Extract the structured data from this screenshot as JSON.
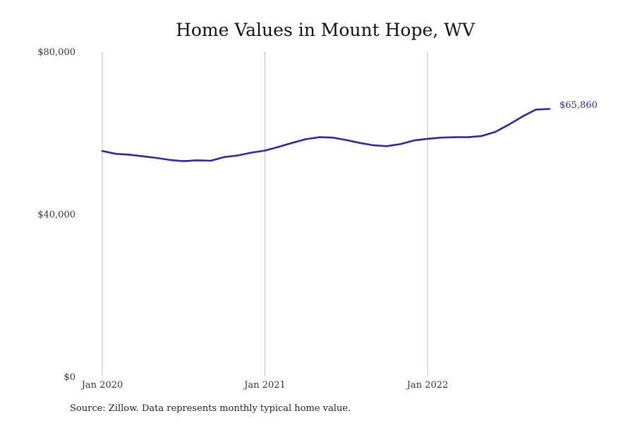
{
  "chart_data": {
    "type": "line",
    "title": "Home Values in Mount Hope, WV",
    "xlabel": "",
    "ylabel": "",
    "ylim": [
      0,
      80000
    ],
    "x_range": [
      "2020-01",
      "2022-11"
    ],
    "x_ticks": [
      {
        "date": "2020-01",
        "label": "Jan 2020"
      },
      {
        "date": "2021-01",
        "label": "Jan 2021"
      },
      {
        "date": "2022-01",
        "label": "Jan 2022"
      }
    ],
    "y_ticks": [
      {
        "value": 0,
        "label": "$0"
      },
      {
        "value": 40000,
        "label": "$40,000"
      },
      {
        "value": 80000,
        "label": "$80,000"
      }
    ],
    "grid": "vertical lines at year ticks",
    "legend": "none",
    "line_color": "#2e2a8f",
    "grid_color": "#bbbbbb",
    "series": [
      {
        "x": [
          "2020-01",
          "2020-02",
          "2020-03",
          "2020-04",
          "2020-05",
          "2020-06",
          "2020-07",
          "2020-08",
          "2020-09",
          "2020-10",
          "2020-11",
          "2020-12",
          "2021-01",
          "2021-02",
          "2021-03",
          "2021-04",
          "2021-05",
          "2021-06",
          "2021-07",
          "2021-08",
          "2021-09",
          "2021-10",
          "2021-11",
          "2021-12",
          "2022-01",
          "2022-02",
          "2022-03",
          "2022-04",
          "2022-05",
          "2022-06",
          "2022-07",
          "2022-08",
          "2022-09",
          "2022-10",
          "2022-11"
        ],
        "values": [
          55500,
          54800,
          54600,
          54200,
          53800,
          53300,
          53000,
          53200,
          53100,
          54000,
          54400,
          55100,
          55600,
          56500,
          57500,
          58400,
          58900,
          58800,
          58200,
          57500,
          56900,
          56700,
          57200,
          58100,
          58500,
          58800,
          58900,
          58900,
          59200,
          60200,
          62000,
          64000,
          65700,
          65860,
          null
        ]
      }
    ],
    "end_label": "$65,860"
  },
  "footer": {
    "source": "Source: Zillow. Data represents monthly typical home value."
  }
}
